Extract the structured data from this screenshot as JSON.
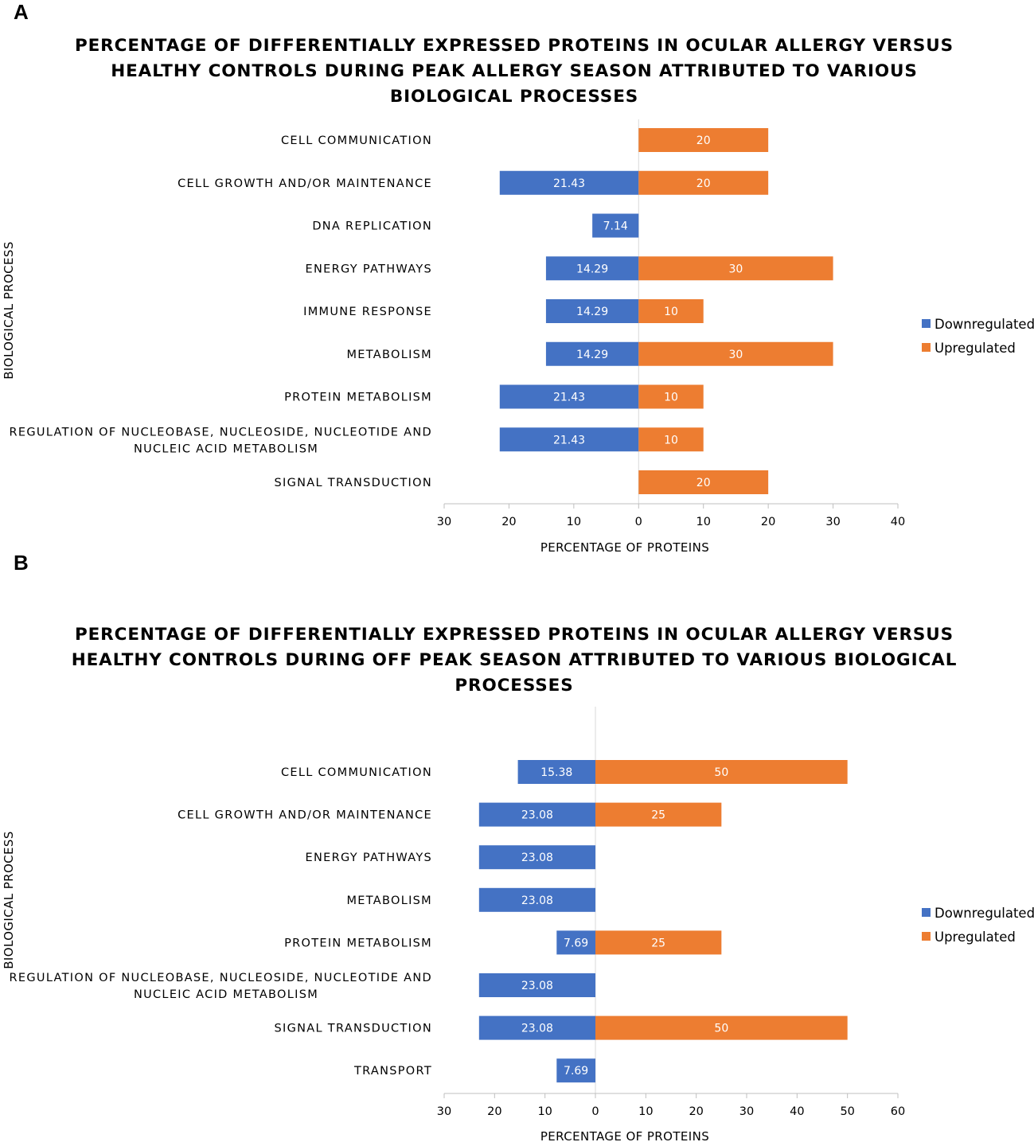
{
  "chart_data": [
    {
      "type": "bar",
      "orientation": "horizontal",
      "panel": "A",
      "title": [
        "PERCENTAGE OF DIFFERENTIALLY EXPRESSED PROTEINS IN OCULAR ALLERGY VERSUS",
        "HEALTHY CONTROLS DURING PEAK ALLERGY SEASON ATTRIBUTED TO VARIOUS",
        "BIOLOGICAL PROCESSES"
      ],
      "xlabel": "PERCENTAGE OF PROTEINS",
      "ylabel": "BIOLOGICAL PROCESS",
      "xlim": [
        -30,
        40
      ],
      "xticks": [
        -30,
        -20,
        -10,
        0,
        10,
        20,
        30,
        40
      ],
      "xtick_labels": [
        "30",
        "20",
        "10",
        "0",
        "10",
        "20",
        "30",
        "40"
      ],
      "legend_position": "right",
      "categories": [
        [
          "CELL COMMUNICATION"
        ],
        [
          "CELL GROWTH AND/OR MAINTENANCE"
        ],
        [
          "DNA REPLICATION"
        ],
        [
          "ENERGY PATHWAYS"
        ],
        [
          "IMMUNE RESPONSE"
        ],
        [
          "METABOLISM"
        ],
        [
          "PROTEIN METABOLISM"
        ],
        [
          "REGULATION OF NUCLEOBASE, NUCLEOSIDE, NUCLEOTIDE AND",
          "NUCLEIC ACID METABOLISM"
        ],
        [
          "SIGNAL TRANSDUCTION"
        ]
      ],
      "series": [
        {
          "name": "Downregulated",
          "color": "#4472C4",
          "direction": "left",
          "values": [
            null,
            21.43,
            7.14,
            14.29,
            14.29,
            14.29,
            21.43,
            21.43,
            null
          ]
        },
        {
          "name": "Upregulated",
          "color": "#ED7D31",
          "direction": "right",
          "values": [
            20,
            20,
            null,
            30,
            10,
            30,
            10,
            10,
            20
          ]
        }
      ]
    },
    {
      "type": "bar",
      "orientation": "horizontal",
      "panel": "B",
      "title": [
        "PERCENTAGE OF DIFFERENTIALLY EXPRESSED PROTEINS IN OCULAR ALLERGY VERSUS",
        "HEALTHY CONTROLS DURING OFF PEAK SEASON ATTRIBUTED TO VARIOUS BIOLOGICAL",
        "PROCESSES"
      ],
      "xlabel": "PERCENTAGE OF PROTEINS",
      "ylabel": "BIOLOGICAL PROCESS",
      "xlim": [
        -30,
        60
      ],
      "xticks": [
        -30,
        -20,
        -10,
        0,
        10,
        20,
        30,
        40,
        50,
        60
      ],
      "xtick_labels": [
        "30",
        "20",
        "10",
        "0",
        "10",
        "20",
        "30",
        "40",
        "50",
        "60"
      ],
      "legend_position": "right",
      "categories": [
        [
          "CELL COMMUNICATION"
        ],
        [
          "CELL GROWTH AND/OR MAINTENANCE"
        ],
        [
          "ENERGY PATHWAYS"
        ],
        [
          "METABOLISM"
        ],
        [
          "PROTEIN METABOLISM"
        ],
        [
          "REGULATION OF NUCLEOBASE, NUCLEOSIDE, NUCLEOTIDE AND",
          "NUCLEIC ACID METABOLISM"
        ],
        [
          "SIGNAL TRANSDUCTION"
        ],
        [
          "TRANSPORT"
        ]
      ],
      "series": [
        {
          "name": "Downregulated",
          "color": "#4472C4",
          "direction": "left",
          "values": [
            15.38,
            23.08,
            23.08,
            23.08,
            7.69,
            23.08,
            23.08,
            7.69
          ]
        },
        {
          "name": "Upregulated",
          "color": "#ED7D31",
          "direction": "right",
          "values": [
            50,
            25,
            null,
            null,
            25,
            null,
            50,
            null
          ]
        }
      ]
    }
  ]
}
